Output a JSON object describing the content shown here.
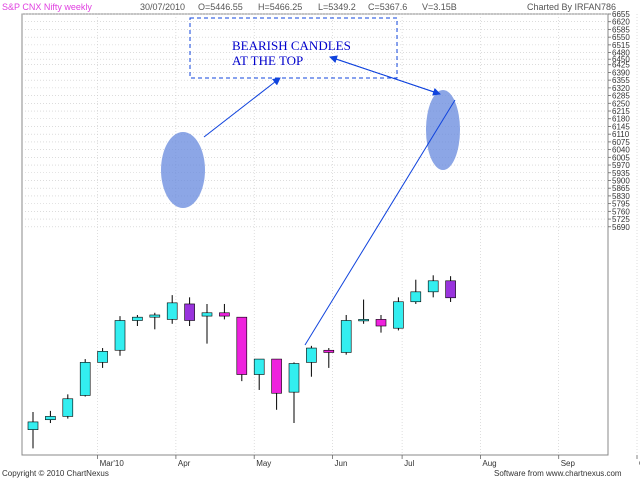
{
  "header": {
    "title": "S&P CNX Nifty weekly",
    "date": "30/07/2010",
    "open": "O=5446.55",
    "high": "H=5466.25",
    "low": "L=5349.2",
    "close": "C=5367.6",
    "volume": "V=3.15B",
    "charted_by": "Charted By IRFAN786"
  },
  "footer": {
    "copyright": "Copyright © 2010 ChartNexus",
    "website": "Software from www.chartnexus.com"
  },
  "annotation": {
    "line1": "BEARISH CANDLES",
    "line2": "AT THE TOP"
  },
  "colors": {
    "bull": "#33eef0",
    "bear": "#ee22dd",
    "bear_highlight": "#9933dd",
    "highlight_ellipse": "#6688dd",
    "annotation": "#1144dd",
    "wick": "#000000",
    "grid": "#c8c8c8"
  },
  "chart_data": {
    "type": "candlestick",
    "ylim": [
      4655,
      6655
    ],
    "y_ticks": [
      6655,
      6620,
      6585,
      6550,
      6515,
      6480,
      6450,
      6425,
      6390,
      6355,
      6320,
      6285,
      6250,
      6215,
      6180,
      6145,
      6110,
      6075,
      6040,
      6005,
      5970,
      5935,
      5900,
      5865,
      5830,
      5795,
      5760,
      5725,
      5690
    ],
    "y_tick_labels": [
      "6655",
      "6620",
      "6585",
      "6550",
      "6515",
      "6480",
      "6450",
      "6425",
      "6390",
      "6355",
      "6320",
      "6285",
      "6250",
      "6215",
      "6180",
      "6145",
      "6110",
      "6075",
      "6040",
      "6005",
      "5970",
      "5935",
      "5900",
      "5865",
      "5830",
      "5795",
      "5760",
      "5725",
      "5690"
    ],
    "x_labels": [
      {
        "label": "Mar'10",
        "index": 4
      },
      {
        "label": "Apr",
        "index": 8.5
      },
      {
        "label": "May",
        "index": 13
      },
      {
        "label": "Jun",
        "index": 17.5
      },
      {
        "label": "Jul",
        "index": 21.5
      },
      {
        "label": "Aug",
        "index": 26
      },
      {
        "label": "Sep",
        "index": 30.5
      },
      {
        "label": "Oct",
        "index": 35
      }
    ],
    "candles": [
      {
        "o": 4770,
        "h": 4850,
        "l": 4685,
        "c": 4805
      },
      {
        "o": 4815,
        "h": 4855,
        "l": 4800,
        "c": 4830
      },
      {
        "o": 4830,
        "h": 4930,
        "l": 4820,
        "c": 4910
      },
      {
        "o": 4925,
        "h": 5090,
        "l": 4920,
        "c": 5075
      },
      {
        "o": 5075,
        "h": 5140,
        "l": 5050,
        "c": 5125
      },
      {
        "o": 5130,
        "h": 5285,
        "l": 5105,
        "c": 5265
      },
      {
        "o": 5265,
        "h": 5290,
        "l": 5240,
        "c": 5280
      },
      {
        "o": 5280,
        "h": 5300,
        "l": 5225,
        "c": 5290
      },
      {
        "o": 5270,
        "h": 5380,
        "l": 5250,
        "c": 5345
      },
      {
        "o": 5340,
        "h": 5370,
        "l": 5240,
        "c": 5265,
        "highlight": true
      },
      {
        "o": 5285,
        "h": 5340,
        "l": 5160,
        "c": 5300
      },
      {
        "o": 5300,
        "h": 5340,
        "l": 5270,
        "c": 5285
      },
      {
        "o": 5280,
        "h": 5280,
        "l": 4990,
        "c": 5020
      },
      {
        "o": 5020,
        "h": 5090,
        "l": 4950,
        "c": 5090
      },
      {
        "o": 5090,
        "h": 5090,
        "l": 4860,
        "c": 4935
      },
      {
        "o": 4940,
        "h": 5075,
        "l": 4800,
        "c": 5070
      },
      {
        "o": 5075,
        "h": 5150,
        "l": 5010,
        "c": 5140
      },
      {
        "o": 5130,
        "h": 5140,
        "l": 5050,
        "c": 5120
      },
      {
        "o": 5120,
        "h": 5290,
        "l": 5110,
        "c": 5265
      },
      {
        "o": 5265,
        "h": 5360,
        "l": 5250,
        "c": 5270
      },
      {
        "o": 5270,
        "h": 5290,
        "l": 5210,
        "c": 5240
      },
      {
        "o": 5230,
        "h": 5370,
        "l": 5220,
        "c": 5350
      },
      {
        "o": 5350,
        "h": 5450,
        "l": 5340,
        "c": 5395
      },
      {
        "o": 5395,
        "h": 5470,
        "l": 5370,
        "c": 5445
      },
      {
        "o": 5445,
        "h": 5466,
        "l": 5349,
        "c": 5368,
        "highlight": true
      }
    ]
  }
}
